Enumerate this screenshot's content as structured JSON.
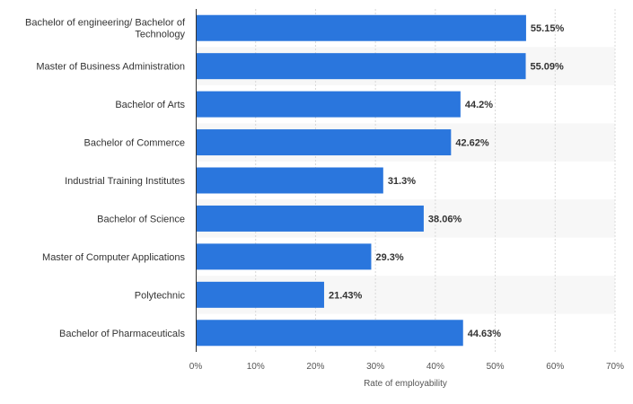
{
  "chart_data": {
    "type": "bar",
    "orientation": "horizontal",
    "categories": [
      [
        "Bachelor of engineering/ Bachelor of",
        "Technology"
      ],
      [
        "Master of Business Administration"
      ],
      [
        "Bachelor of Arts"
      ],
      [
        "Bachelor of Commerce"
      ],
      [
        "Industrial Training Institutes"
      ],
      [
        "Bachelor of Science"
      ],
      [
        "Master of Computer Applications"
      ],
      [
        "Polytechnic"
      ],
      [
        "Bachelor of Pharmaceuticals"
      ]
    ],
    "values": [
      55.15,
      55.09,
      44.2,
      42.62,
      31.3,
      38.06,
      29.3,
      21.43,
      44.63
    ],
    "value_labels": [
      "55.15%",
      "55.09%",
      "44.2%",
      "42.62%",
      "31.3%",
      "38.06%",
      "29.3%",
      "21.43%",
      "44.63%"
    ],
    "xlim": [
      0,
      70
    ],
    "x_ticks": [
      0,
      10,
      20,
      30,
      40,
      50,
      60,
      70
    ],
    "x_tick_labels": [
      "0%",
      "10%",
      "20%",
      "30%",
      "40%",
      "50%",
      "60%",
      "70%"
    ],
    "xlabel": "Rate of employability",
    "ylabel": "",
    "title": "",
    "grid": true,
    "alternating_bands": true,
    "bar_color": "#2a76dd"
  }
}
